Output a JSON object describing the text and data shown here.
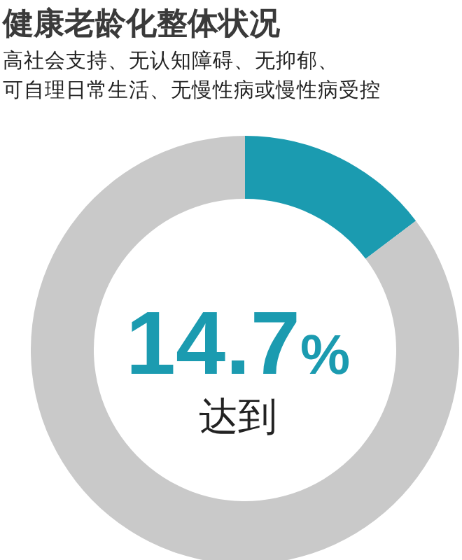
{
  "chart_data": {
    "type": "donut",
    "title": "健康老龄化整体状况",
    "subtitle": "高社会支持、无认知障碍、无抑郁、可自理日常生活、无慢性病或慢性病受控",
    "categories": [
      null,
      null
    ],
    "values": [
      14.7,
      85.3
    ],
    "colors": [
      "#1b9bb0",
      "#c9c9c9"
    ],
    "annotations": [
      "14.7%",
      "达到"
    ],
    "legend": false
  }
}
